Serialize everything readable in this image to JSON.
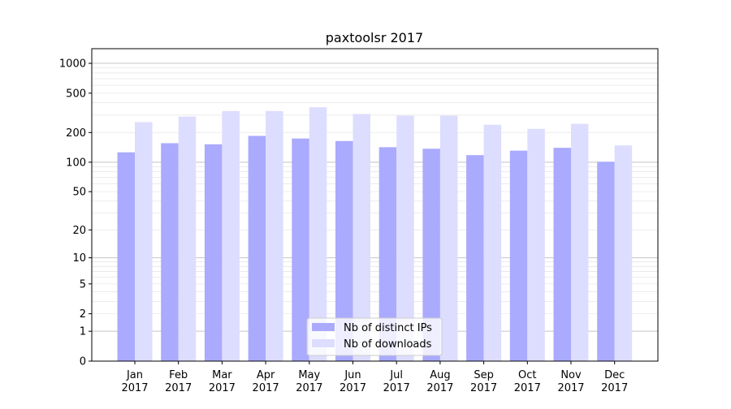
{
  "chart_data": {
    "type": "bar",
    "title": "paxtoolsr 2017",
    "xlabel": "",
    "ylabel": "",
    "yscale": "symlog",
    "ylim": [
      0,
      1300
    ],
    "yticks": [
      0,
      1,
      2,
      5,
      10,
      20,
      50,
      100,
      200,
      500,
      1000
    ],
    "ytick_labels": [
      "0",
      "1",
      "2",
      "5",
      "10",
      "20",
      "50",
      "100",
      "200",
      "500",
      "1000"
    ],
    "grid": true,
    "legend_position": "bottom-center",
    "categories": [
      "Jan\n2017",
      "Feb\n2017",
      "Mar\n2017",
      "Apr\n2017",
      "May\n2017",
      "Jun\n2017",
      "Jul\n2017",
      "Aug\n2017",
      "Sep\n2017",
      "Oct\n2017",
      "Nov\n2017",
      "Dec\n2017"
    ],
    "category_months": [
      "Jan",
      "Feb",
      "Mar",
      "Apr",
      "May",
      "Jun",
      "Jul",
      "Aug",
      "Sep",
      "Oct",
      "Nov",
      "Dec"
    ],
    "category_year": "2017",
    "series": [
      {
        "name": "Nb of distinct IPs",
        "color": "#aaaaff",
        "values": [
          126,
          156,
          152,
          185,
          174,
          164,
          142,
          137,
          118,
          131,
          140,
          101
        ]
      },
      {
        "name": "Nb of downloads",
        "color": "#ddddff",
        "values": [
          255,
          290,
          330,
          330,
          360,
          308,
          296,
          296,
          240,
          218,
          245,
          148
        ]
      }
    ]
  }
}
